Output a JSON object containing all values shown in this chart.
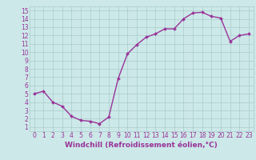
{
  "x": [
    0,
    1,
    2,
    3,
    4,
    5,
    6,
    7,
    8,
    9,
    10,
    11,
    12,
    13,
    14,
    15,
    16,
    17,
    18,
    19,
    20,
    21,
    22,
    23
  ],
  "y": [
    5.0,
    5.3,
    4.0,
    3.5,
    2.3,
    1.8,
    1.7,
    1.4,
    2.2,
    6.8,
    9.8,
    10.9,
    11.8,
    12.2,
    12.8,
    12.8,
    14.0,
    14.7,
    14.8,
    14.3,
    14.1,
    11.3,
    12.0,
    12.2
  ],
  "line_color": "#993399",
  "marker": "D",
  "marker_size": 2,
  "linewidth": 1.0,
  "xlabel": "Windchill (Refroidissement éolien,°C)",
  "xlim": [
    -0.5,
    23.5
  ],
  "ylim": [
    0.5,
    15.5
  ],
  "yticks": [
    1,
    2,
    3,
    4,
    5,
    6,
    7,
    8,
    9,
    10,
    11,
    12,
    13,
    14,
    15
  ],
  "xticks": [
    0,
    1,
    2,
    3,
    4,
    5,
    6,
    7,
    8,
    9,
    10,
    11,
    12,
    13,
    14,
    15,
    16,
    17,
    18,
    19,
    20,
    21,
    22,
    23
  ],
  "background_color": "#cce8e8",
  "grid_color": "#aacccc",
  "tick_fontsize": 5.5,
  "xlabel_fontsize": 6.5
}
